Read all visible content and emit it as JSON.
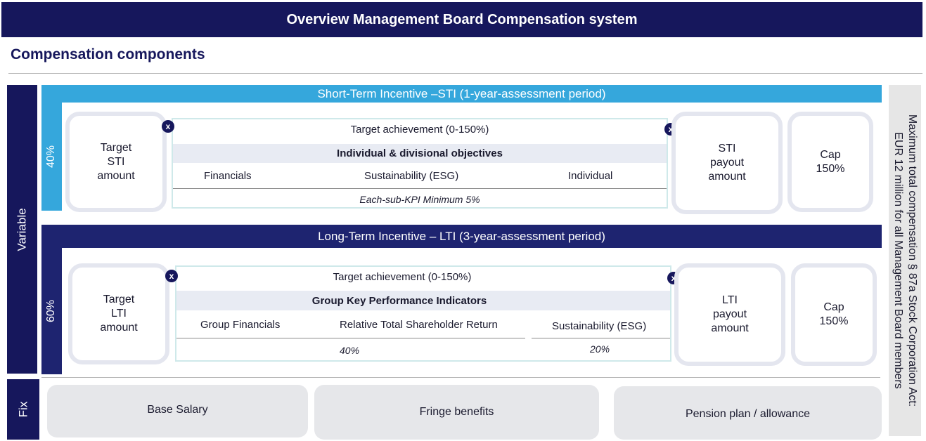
{
  "header": {
    "title": "Overview Management Board Compensation system"
  },
  "section_title": "Compensation components",
  "labels": {
    "variable": "Variable",
    "fix": "Fix"
  },
  "sti": {
    "band_title": "Short-Term Incentive –STI  (1-year-assessment period)",
    "percent": "40%",
    "target_amount": "Target\nSTI\namount",
    "target_achievement": "Target achievement (0-150%)",
    "objectives_title": "Individual & divisional objectives",
    "columns": [
      "Financials",
      "Sustainability (ESG)",
      "Individual"
    ],
    "footnote": "Each-sub-KPI Minimum 5%",
    "payout": "STI\npayout\namount",
    "cap": "Cap\n150%",
    "x1": "x",
    "x2": "x"
  },
  "lti": {
    "band_title": "Long-Term Incentive – LTI  (3-year-assessment period)",
    "percent": "60%",
    "target_amount": "Target\nLTI\namount",
    "target_achievement": "Target achievement (0-150%)",
    "objectives_title": "Group Key Performance Indicators",
    "columns": [
      "Group Financials",
      "Relative Total Shareholder Return",
      "Sustainability (ESG)"
    ],
    "weights": [
      "40%",
      "20%"
    ],
    "payout": "LTI\npayout\namount",
    "cap": "Cap\n150%",
    "x1": "x",
    "x2": "x"
  },
  "right_panel": {
    "line1": "Maximum total compensation § 87a Stock Corporation Act:",
    "line2": "EUR 12 million for all Management Board members"
  },
  "fix": {
    "items": [
      "Base Salary",
      "Fringe benefits",
      "Pension plan / allowance"
    ]
  },
  "colors": {
    "navy": "#16175c",
    "sky": "#35a7dc",
    "lti_blue": "#1e2470"
  }
}
